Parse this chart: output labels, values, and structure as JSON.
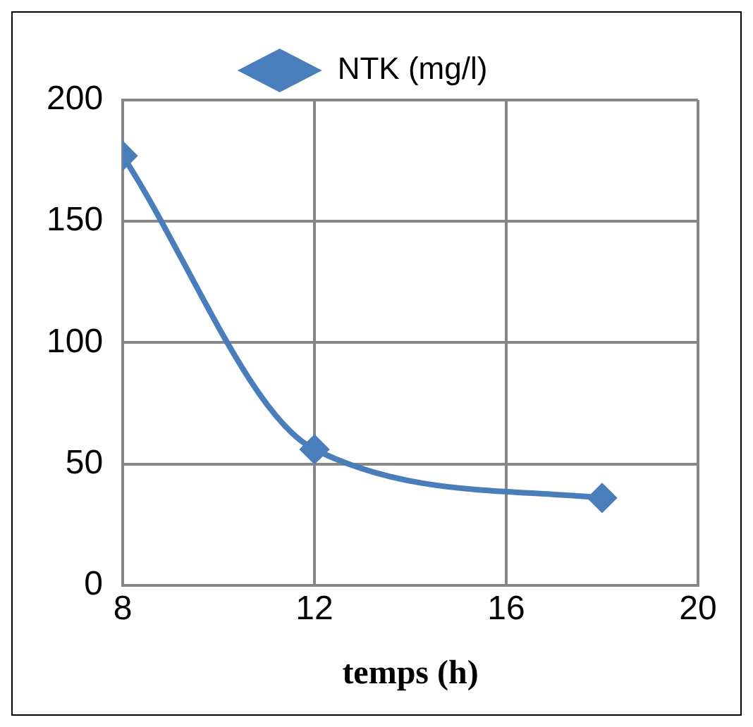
{
  "chart_data": {
    "type": "line",
    "xlabel": "temps (h)",
    "x": [
      8,
      12,
      18
    ],
    "series": [
      {
        "name": "NTK (mg/l)",
        "color": "#4a7ebb",
        "values": [
          177,
          56,
          36
        ]
      }
    ],
    "xlim": [
      8,
      20
    ],
    "xticks": [
      8,
      12,
      16,
      20
    ],
    "ylim": [
      0,
      200
    ],
    "yticks": [
      0,
      50,
      100,
      150,
      200
    ],
    "grid": true,
    "legend": "top",
    "marker": "diamond",
    "line_style": "solid"
  }
}
